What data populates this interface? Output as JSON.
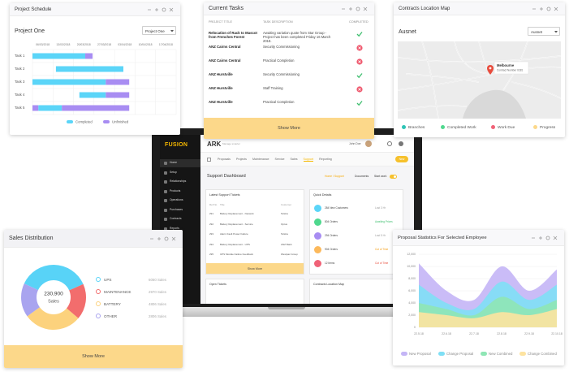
{
  "project_schedule": {
    "title": "Project Schedule",
    "project": "Project One",
    "select": "Project One",
    "xlim": [
      0,
      49
    ],
    "xticks": [
      {
        "value": 0,
        "label": "06/03/2018"
      },
      {
        "value": 7,
        "label": "13/03/2018"
      },
      {
        "value": 14,
        "label": "20/03/2018"
      },
      {
        "value": 21,
        "label": "27/03/2018"
      },
      {
        "value": 28,
        "label": "03/04/2018"
      },
      {
        "value": 35,
        "label": "10/04/2018"
      },
      {
        "value": 42,
        "label": "17/04/2018"
      }
    ],
    "tasks": [
      "Task 1",
      "Task 2",
      "Task 3",
      "Task 4",
      "Task 5"
    ],
    "series": [
      {
        "name": "Completed",
        "color": "#5bd5f8",
        "ranges": [
          [
            [
              0,
              18
            ]
          ],
          [
            [
              8,
              31
            ]
          ],
          [
            [
              0,
              25
            ]
          ],
          [
            [
              16,
              25
            ]
          ],
          [
            [
              2,
              10
            ]
          ]
        ]
      },
      {
        "name": "Unfinished",
        "color": "#a88df2",
        "ranges": [
          [
            [
              18,
              20.5
            ]
          ],
          [],
          [
            [
              25,
              33
            ]
          ],
          [
            [
              25,
              33
            ]
          ],
          [
            [
              0,
              2
            ],
            [
              10,
              33
            ]
          ]
        ]
      }
    ]
  },
  "current_tasks": {
    "title": "Current Tasks",
    "columns": [
      "PROJECT TITLE",
      "TASK DESCRIPTION",
      "COMPLETED"
    ],
    "rows": [
      {
        "title": "Relocation of Rack to Mascot from Frenches Forest",
        "description": "Awaiting variation quote from Star Group - Project has been completed Friday 16 March 2018.",
        "completed": true
      },
      {
        "title": "ANZ Cairns Central",
        "description": "Security Commissioning",
        "completed": false
      },
      {
        "title": "ANZ Cairns Central",
        "description": "Practical Completion",
        "completed": false
      },
      {
        "title": "ANZ Hurstville",
        "description": "Security Commissioning",
        "completed": true
      },
      {
        "title": "ANZ Hurstville",
        "description": "Staff Training",
        "completed": false
      },
      {
        "title": "ANZ Hurstville",
        "description": "Practical Completion",
        "completed": true
      }
    ],
    "button": "Show More"
  },
  "contracts_map": {
    "title": "Contracts Location Map",
    "region": "Ausnet",
    "select": "Ausnet",
    "popup_title": "Melbourne",
    "popup_text": "Contract Number 0281",
    "legend": [
      {
        "name": "Branches",
        "color": "#2ec4b6"
      },
      {
        "name": "Completed Work",
        "color": "#4fd88e"
      },
      {
        "name": "Work Due",
        "color": "#f06277"
      },
      {
        "name": "Progress",
        "color": "#fcd88a"
      }
    ]
  },
  "dashboard": {
    "brand": "FUSION",
    "product": "ARK",
    "tagline": "Manage smarter",
    "user": "John Doe",
    "nav": [
      "Proposals",
      "Projects",
      "Maintenance",
      "Service",
      "Sales",
      "Support",
      "Reporting"
    ],
    "active_nav": 5,
    "new_button": "New",
    "sidebar": [
      "Home",
      "Setup",
      "Relationships",
      "Products",
      "Operations",
      "Purchases",
      "Contracts",
      "Reports"
    ],
    "page_title": "Support Dashboard",
    "breadcrumb": "Home / Support",
    "documents": "Documents",
    "start_work": "Start work",
    "tickets": {
      "title": "Latest Support Tickets",
      "columns": [
        "Ref No",
        "Title",
        "Customer"
      ],
      "rows": [
        [
          "291",
          "Battery Replacement - Network",
          "Telstra"
        ],
        [
          "292",
          "Battery Replacement - Service",
          "Optus"
        ],
        [
          "293",
          "Alarm Fault Power Failure",
          "Telstra"
        ],
        [
          "294",
          "Battery Replacement - UPS",
          "ANZ Bank"
        ],
        [
          "295",
          "UPS Module Failure Feedback",
          "Westpac Group"
        ]
      ],
      "button": "Show More"
    },
    "quick_details": {
      "title": "Quick Details",
      "items": [
        {
          "label": "284 New Customers",
          "status": "Lost 3 Hr",
          "color": "#5bd5f8",
          "status_color": "#999999"
        },
        {
          "label": "804 Orders",
          "status": "Awaiting Prices",
          "color": "#4fd88e",
          "status_color": "#3fbf6f"
        },
        {
          "label": "294 Orders",
          "status": "Lost 5 Hr",
          "color": "#a88df2",
          "status_color": "#999999"
        },
        {
          "label": "904 Orders",
          "status": "Cut of Time",
          "color": "#fcb95b",
          "status_color": "#f39c12"
        },
        {
          "label": "12 Items",
          "status": "Cut of Time",
          "color": "#f06277",
          "status_color": "#e74c3c"
        }
      ]
    },
    "open_tickets": "Open Tickets",
    "map_panel": "Contracts Location Map"
  },
  "sales_distribution": {
    "title": "Sales Distribution",
    "center_value": "230,900",
    "center_label": "Sales",
    "items": [
      {
        "name": "UPS",
        "color": "#58d3f7",
        "value": 6060,
        "value_label": "6060 Sales"
      },
      {
        "name": "MAINTENANCE",
        "color": "#f26d6d",
        "value": 2970,
        "value_label": "2970 Sales"
      },
      {
        "name": "BATTERY",
        "color": "#fcd27d",
        "value": 4806,
        "value_label": "4806 Sales"
      },
      {
        "name": "OTHER",
        "color": "#a9a4ef",
        "value": 2806,
        "value_label": "2806 Sales"
      }
    ],
    "button": "Show More"
  },
  "proposal_statistics": {
    "title": "Proposal Statistics For Selected Employee",
    "categories": [
      "22.5.18",
      "22.6.18",
      "22.7.18",
      "22.8.18",
      "22.9.18",
      "22.10.18"
    ],
    "ylim": [
      0,
      12000
    ],
    "yticks": [
      0,
      {
        "value": 2000,
        "label": "2,000"
      },
      {
        "value": 4000,
        "label": "4,000"
      },
      {
        "value": 6000,
        "label": "6,000"
      },
      {
        "value": 8000,
        "label": "8,000"
      },
      {
        "value": 10000,
        "label": "10,000"
      },
      {
        "value": 12000,
        "label": "12,000"
      }
    ],
    "series": [
      {
        "name": "New Proposal",
        "color": "#c4b5f6",
        "values": [
          10500,
          6000,
          4500,
          10000,
          6000,
          9500
        ]
      },
      {
        "name": "Change Proposal",
        "color": "#7fdff5",
        "values": [
          7000,
          4000,
          3000,
          7500,
          4500,
          7000
        ]
      },
      {
        "name": "New Combined",
        "color": "#8fe6b5",
        "values": [
          4000,
          3000,
          2000,
          5000,
          3000,
          4500
        ]
      },
      {
        "name": "Change Combined",
        "color": "#fde3a0",
        "values": [
          2500,
          2000,
          1500,
          2500,
          2000,
          3000
        ]
      }
    ]
  }
}
